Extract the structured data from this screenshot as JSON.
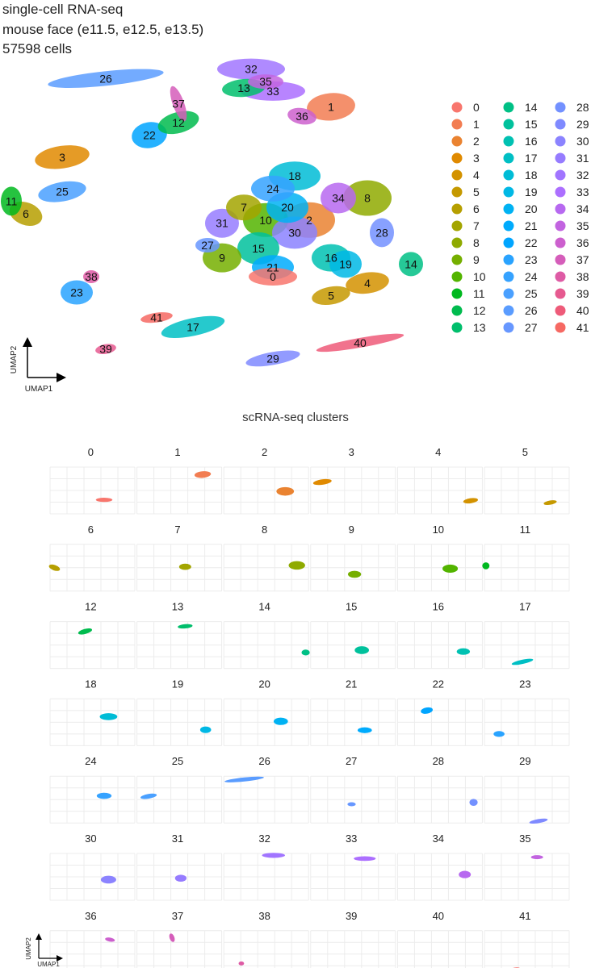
{
  "header": {
    "line1": "single-cell RNA-seq",
    "line2": "mouse face (e11.5, e12.5, e13.5)",
    "line3": "57598 cells"
  },
  "grid_title": "scRNA-seq clusters",
  "chart_data": [
    {
      "type": "scatter",
      "subtype": "umap-embedding",
      "xlabel": "UMAP1",
      "ylabel": "UMAP2",
      "grid": false,
      "legend_placement": "right",
      "legend_columns": 3,
      "clusters": [
        {
          "id": "0",
          "color": "#F8766D",
          "x": 37.0,
          "y": 30.0
        },
        {
          "id": "1",
          "color": "#F27D52",
          "x": 45.0,
          "y": 84.0
        },
        {
          "id": "2",
          "color": "#EA8331",
          "x": 42.0,
          "y": 48.0
        },
        {
          "id": "3",
          "color": "#E08A00",
          "x": 8.0,
          "y": 68.0
        },
        {
          "id": "4",
          "color": "#D39200",
          "x": 50.0,
          "y": 28.0
        },
        {
          "id": "5",
          "color": "#C59900",
          "x": 45.0,
          "y": 24.0
        },
        {
          "id": "6",
          "color": "#B69F00",
          "x": 3.0,
          "y": 50.0
        },
        {
          "id": "7",
          "color": "#A3A500",
          "x": 33.0,
          "y": 52.0
        },
        {
          "id": "8",
          "color": "#8FAA00",
          "x": 50.0,
          "y": 55.0
        },
        {
          "id": "9",
          "color": "#75AF00",
          "x": 30.0,
          "y": 36.0
        },
        {
          "id": "10",
          "color": "#53B400",
          "x": 36.0,
          "y": 48.0
        },
        {
          "id": "11",
          "color": "#00B81F",
          "x": 1.0,
          "y": 54.0
        },
        {
          "id": "12",
          "color": "#00BB4E",
          "x": 24.0,
          "y": 79.0
        },
        {
          "id": "13",
          "color": "#00BE6C",
          "x": 33.0,
          "y": 90.0
        },
        {
          "id": "14",
          "color": "#00C085",
          "x": 56.0,
          "y": 34.0
        },
        {
          "id": "15",
          "color": "#00C19C",
          "x": 35.0,
          "y": 39.0
        },
        {
          "id": "16",
          "color": "#00C1B2",
          "x": 45.0,
          "y": 36.0
        },
        {
          "id": "17",
          "color": "#00BFC4",
          "x": 26.0,
          "y": 14.0
        },
        {
          "id": "18",
          "color": "#00BCD6",
          "x": 40.0,
          "y": 62.0
        },
        {
          "id": "19",
          "color": "#00B8E5",
          "x": 47.0,
          "y": 34.0
        },
        {
          "id": "20",
          "color": "#00B2F3",
          "x": 39.0,
          "y": 52.0
        },
        {
          "id": "21",
          "color": "#00ABFD",
          "x": 37.0,
          "y": 33.0
        },
        {
          "id": "22",
          "color": "#00A5FF",
          "x": 20.0,
          "y": 75.0
        },
        {
          "id": "23",
          "color": "#29A3FF",
          "x": 10.0,
          "y": 25.0
        },
        {
          "id": "24",
          "color": "#35A2FF",
          "x": 37.0,
          "y": 58.0
        },
        {
          "id": "25",
          "color": "#4AA0FF",
          "x": 8.0,
          "y": 57.0
        },
        {
          "id": "26",
          "color": "#5A9CFF",
          "x": 14.0,
          "y": 93.0
        },
        {
          "id": "27",
          "color": "#6797FF",
          "x": 28.0,
          "y": 40.0
        },
        {
          "id": "28",
          "color": "#7391FF",
          "x": 52.0,
          "y": 44.0
        },
        {
          "id": "29",
          "color": "#7F8AFF",
          "x": 37.0,
          "y": 4.0
        },
        {
          "id": "30",
          "color": "#8B83FF",
          "x": 40.0,
          "y": 44.0
        },
        {
          "id": "31",
          "color": "#967CFF",
          "x": 30.0,
          "y": 47.0
        },
        {
          "id": "32",
          "color": "#A175FF",
          "x": 34.0,
          "y": 96.0
        },
        {
          "id": "33",
          "color": "#AC6FFF",
          "x": 37.0,
          "y": 89.0
        },
        {
          "id": "34",
          "color": "#B769F0",
          "x": 46.0,
          "y": 55.0
        },
        {
          "id": "35",
          "color": "#C264E0",
          "x": 36.0,
          "y": 92.0
        },
        {
          "id": "36",
          "color": "#CC60CE",
          "x": 41.0,
          "y": 81.0
        },
        {
          "id": "37",
          "color": "#D55DBA",
          "x": 24.0,
          "y": 85.0
        },
        {
          "id": "38",
          "color": "#DE5BA5",
          "x": 12.0,
          "y": 30.0
        },
        {
          "id": "39",
          "color": "#E65A90",
          "x": 14.0,
          "y": 7.0
        },
        {
          "id": "40",
          "color": "#EE5B79",
          "x": 49.0,
          "y": 9.0
        },
        {
          "id": "41",
          "color": "#F66963",
          "x": 21.0,
          "y": 17.0
        }
      ]
    },
    {
      "type": "scatter",
      "subtype": "umap-small-multiples",
      "title": "scRNA-seq clusters",
      "xlabel": "UMAP1",
      "ylabel": "UMAP2",
      "grid": true,
      "layout": "7 rows x 6 columns",
      "panels": [
        "0",
        "1",
        "2",
        "3",
        "4",
        "5",
        "6",
        "7",
        "8",
        "9",
        "10",
        "11",
        "12",
        "13",
        "14",
        "15",
        "16",
        "17",
        "18",
        "19",
        "20",
        "21",
        "22",
        "23",
        "24",
        "25",
        "26",
        "27",
        "28",
        "29",
        "30",
        "31",
        "32",
        "33",
        "34",
        "35",
        "36",
        "37",
        "38",
        "39",
        "40",
        "41"
      ]
    }
  ]
}
